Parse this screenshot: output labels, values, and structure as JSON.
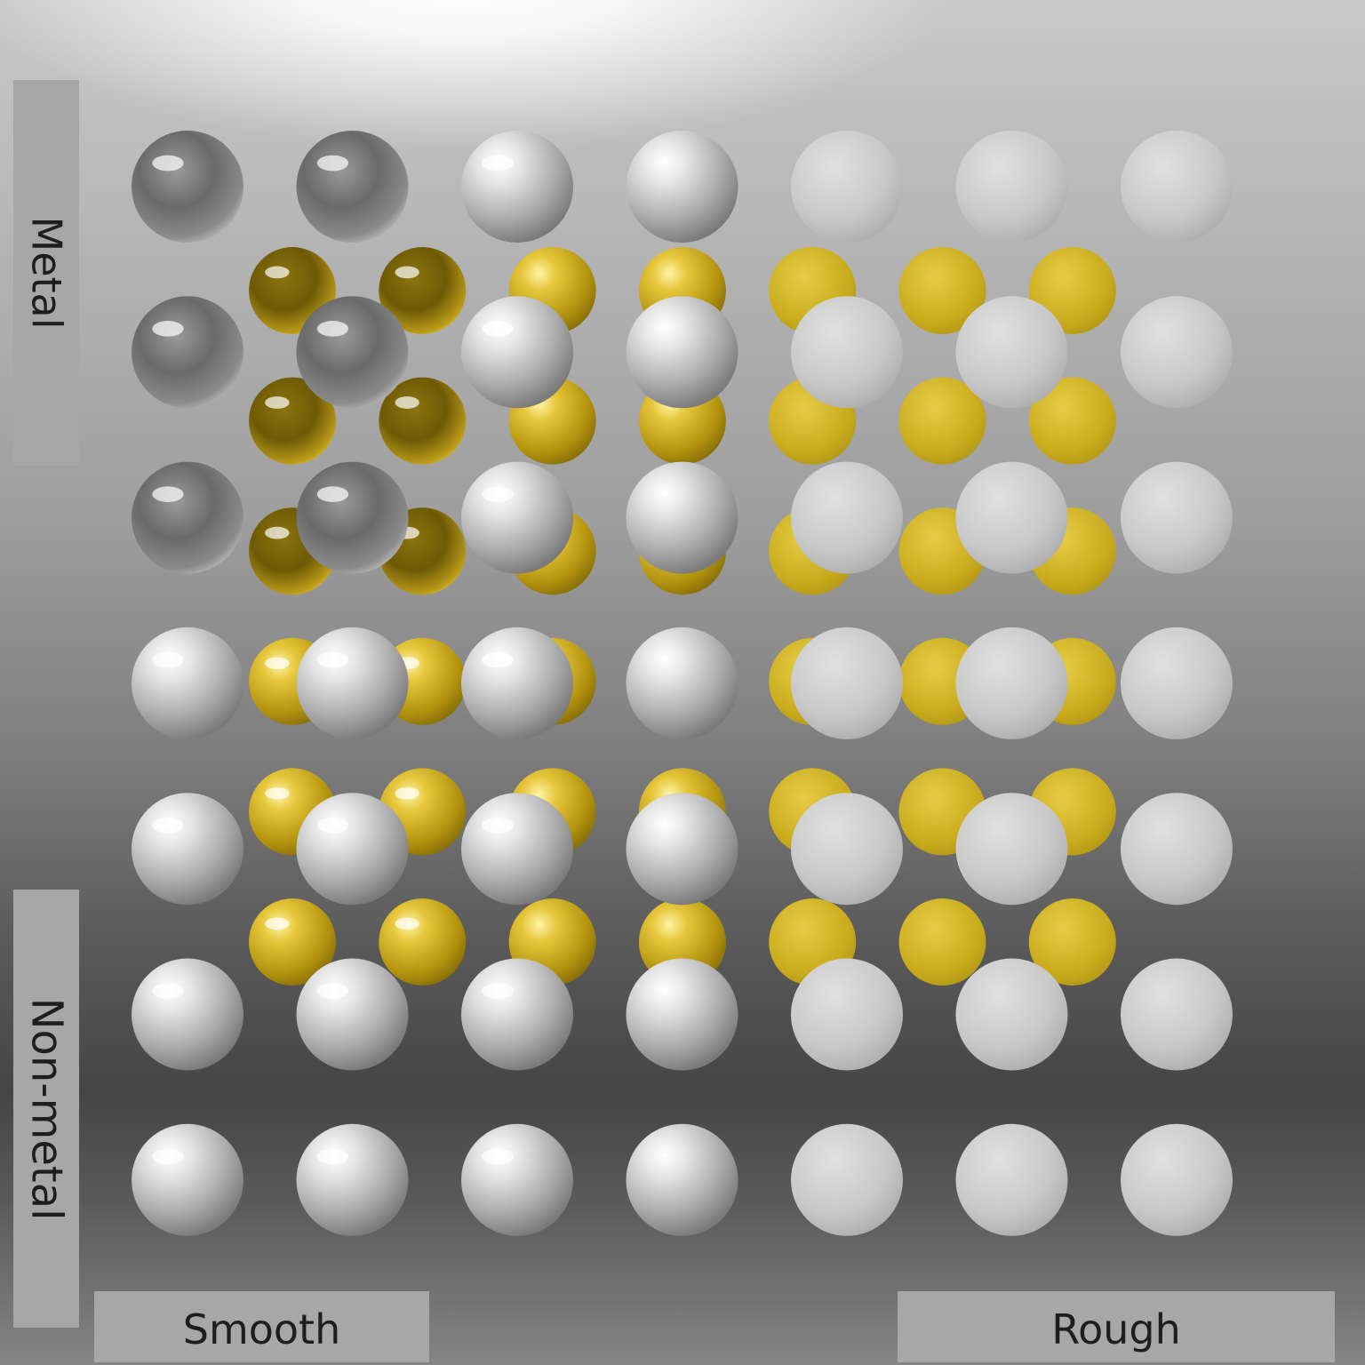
{
  "labels": {
    "metal": "Metal",
    "non_metal": "Non-metal",
    "smooth": "Smooth",
    "rough": "Rough"
  },
  "colors": {
    "silver": "#c9c9c9",
    "gold": "#c9ab1c",
    "panel": "#a7a7a7",
    "label_text": "#1e1e1e"
  },
  "grid": {
    "silver_columns": 7,
    "silver_rows": 7,
    "gold_columns": 7,
    "gold_rows": 6,
    "axis_horizontal": "roughness, smooth to rough",
    "axis_vertical": "metallic, metal to non-metal"
  }
}
